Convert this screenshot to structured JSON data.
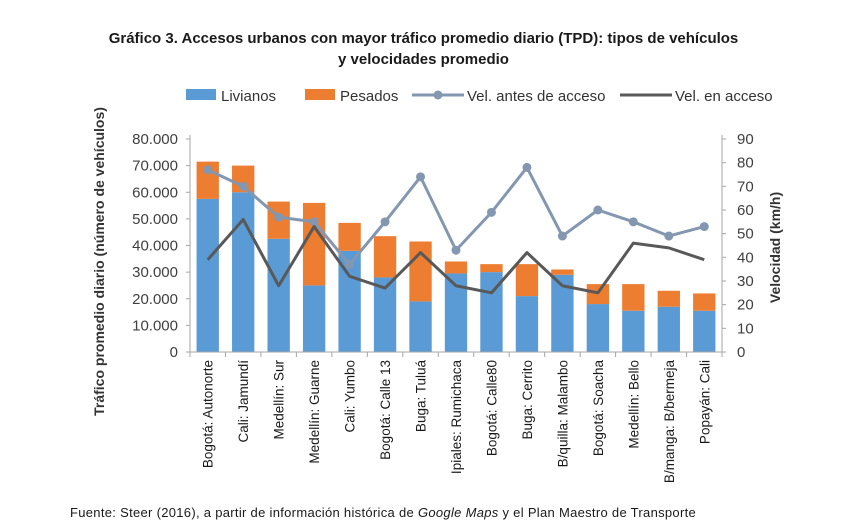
{
  "title_line1": "Gráfico 3. Accesos urbanos con mayor tráfico promedio diario (TPD): tipos de vehículos",
  "title_line2": "y velocidades promedio",
  "source": {
    "prefix": "Fuente: Steer (2016), a partir de información histórica de ",
    "italic": "Google Maps",
    "suffix": " y el Plan Maestro de Transporte"
  },
  "chart_data": {
    "type": "bar",
    "stacked": true,
    "categories": [
      "Bogotá: Autonorte",
      "Cali: Jamundí",
      "Medellín: Sur",
      "Medellín: Guarne",
      "Cali: Yumbo",
      "Bogotá: Calle 13",
      "Buga: Tuluá",
      "Ipiales: Rumichaca",
      "Bogotá: Calle80",
      "Buga: Cerrito",
      "B/quilla: Malambo",
      "Bogotá: Soacha",
      "Medellín: Bello",
      "B/manga: B/bermeja",
      "Popayán: Cali"
    ],
    "series": [
      {
        "name": "Livianos",
        "kind": "bar",
        "axis": "left",
        "color": "#5b9bd5",
        "values": [
          57500,
          60000,
          42500,
          25000,
          38000,
          28000,
          19000,
          29500,
          30000,
          21000,
          29000,
          18000,
          15500,
          17000,
          15500
        ]
      },
      {
        "name": "Pesados",
        "kind": "bar",
        "axis": "left",
        "color": "#ed7d31",
        "values": [
          14000,
          10000,
          14000,
          31000,
          10500,
          15500,
          22500,
          4500,
          3000,
          12000,
          2000,
          7500,
          10000,
          6000,
          6500
        ]
      },
      {
        "name": "Vel. antes de acceso",
        "kind": "line",
        "axis": "right",
        "color": "#8497b0",
        "marker": "circle",
        "values": [
          77,
          70,
          57,
          55,
          37,
          55,
          74,
          43,
          59,
          78,
          49,
          60,
          55,
          49,
          53
        ]
      },
      {
        "name": "Vel. en acceso",
        "kind": "line",
        "axis": "right",
        "color": "#595959",
        "values": [
          39,
          56,
          28,
          53,
          32,
          27,
          42,
          28,
          25,
          42,
          28,
          25,
          46,
          44,
          39
        ]
      }
    ],
    "ylabel": "Tráfico promedio diario (número de vehículos)",
    "ylabel_right": "Velocidad (km/h)",
    "ylim": [
      0,
      80000
    ],
    "ylim_right": [
      0,
      90
    ],
    "yticks": [
      "0",
      "10.000",
      "20.000",
      "30.000",
      "40.000",
      "50.000",
      "60.000",
      "70.000",
      "80.000"
    ],
    "yticks_right": [
      "0",
      "10",
      "20",
      "30",
      "40",
      "50",
      "60",
      "70",
      "80",
      "90"
    ],
    "legend_position": "top",
    "grid": false
  }
}
